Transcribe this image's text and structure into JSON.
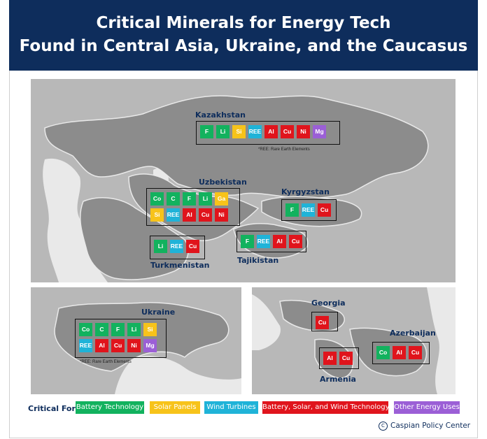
{
  "title": {
    "line1": "Critical Minerals for Energy Tech",
    "line2": "Found in Central Asia, Ukraine, and the Caucasus"
  },
  "colors": {
    "header_bg": "#0e2d5c",
    "battery": "#12b25e",
    "solar": "#f7c31a",
    "wind": "#1fb3d8",
    "all": "#e0141c",
    "other": "#9b5fd6",
    "land": "#8c8c8c",
    "other_land": "#b8b8b8",
    "sea": "#e9e9e9"
  },
  "countries": {
    "kazakhstan": {
      "name": "Kazakhstan",
      "minerals": [
        [
          "F",
          "battery"
        ],
        [
          "Li",
          "battery"
        ],
        [
          "Si",
          "solar"
        ],
        [
          "REE",
          "wind"
        ],
        [
          "Al",
          "all"
        ],
        [
          "Cu",
          "all"
        ],
        [
          "Ni",
          "all"
        ],
        [
          "Mg",
          "other"
        ]
      ],
      "note": "*REE: Rare Earth Elements"
    },
    "uzbekistan": {
      "name": "Uzbekistan",
      "minerals": [
        [
          "Co",
          "battery"
        ],
        [
          "C",
          "battery"
        ],
        [
          "F",
          "battery"
        ],
        [
          "Li",
          "battery"
        ],
        [
          "Ga",
          "solar"
        ],
        [
          "Si",
          "solar"
        ],
        [
          "REE",
          "wind"
        ],
        [
          "Al",
          "all"
        ],
        [
          "Cu",
          "all"
        ],
        [
          "Ni",
          "all"
        ]
      ]
    },
    "kyrgyzstan": {
      "name": "Kyrgyzstan",
      "minerals": [
        [
          "F",
          "battery"
        ],
        [
          "REE",
          "wind"
        ],
        [
          "Cu",
          "all"
        ]
      ]
    },
    "turkmenistan": {
      "name": "Turkmenistan",
      "minerals": [
        [
          "Li",
          "battery"
        ],
        [
          "REE",
          "wind"
        ],
        [
          "Cu",
          "all"
        ]
      ]
    },
    "tajikistan": {
      "name": "Tajikistan",
      "minerals": [
        [
          "F",
          "battery"
        ],
        [
          "REE",
          "wind"
        ],
        [
          "Al",
          "all"
        ],
        [
          "Cu",
          "all"
        ]
      ]
    },
    "ukraine": {
      "name": "Ukraine",
      "minerals": [
        [
          "Co",
          "battery"
        ],
        [
          "C",
          "battery"
        ],
        [
          "F",
          "battery"
        ],
        [
          "Li",
          "battery"
        ],
        [
          "Si",
          "solar"
        ],
        [
          "REE",
          "wind"
        ],
        [
          "Al",
          "all"
        ],
        [
          "Cu",
          "all"
        ],
        [
          "Ni",
          "all"
        ],
        [
          "Mg",
          "other"
        ]
      ],
      "note": "*REE: Rare Earth Elements"
    },
    "georgia": {
      "name": "Georgia",
      "minerals": [
        [
          "Cu",
          "all"
        ]
      ]
    },
    "armenia": {
      "name": "Armenia",
      "minerals": [
        [
          "Al",
          "all"
        ],
        [
          "Cu",
          "all"
        ]
      ]
    },
    "azerbaijan": {
      "name": "Azerbaijan",
      "minerals": [
        [
          "Co",
          "battery"
        ],
        [
          "Al",
          "all"
        ],
        [
          "Cu",
          "all"
        ]
      ]
    }
  },
  "legend": {
    "title": "Critical For:",
    "items": [
      {
        "label": "Battery Technology",
        "color": "battery"
      },
      {
        "label": "Solar Panels",
        "color": "solar"
      },
      {
        "label": "Wind Turbines",
        "color": "wind"
      },
      {
        "label": "Battery, Solar, and Wind Technology",
        "color": "all"
      },
      {
        "label": "Other Energy Uses",
        "color": "other"
      }
    ]
  },
  "credit": {
    "symbol": "C",
    "text": "Caspian Policy Center"
  }
}
